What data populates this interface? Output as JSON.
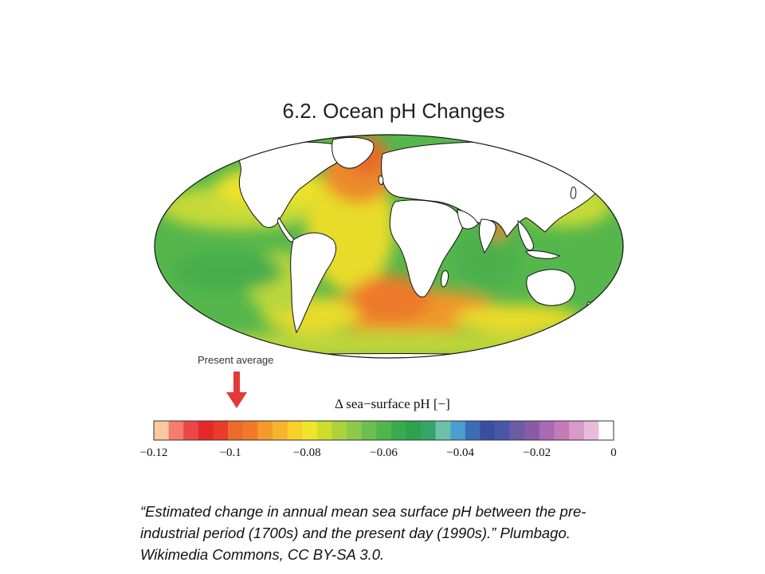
{
  "slide": {
    "title": "6.2. Ocean pH Changes",
    "present_label": "Present average",
    "colorbar_title": "Δ sea−surface pH [−]",
    "caption": "“Estimated change in annual mean sea surface pH between the pre-industrial period (1700s) and the present day (1990s).” Plumbago. Wikimedia Commons, CC BY-SA 3.0."
  },
  "colorbar": {
    "min": -0.12,
    "max": 0,
    "tick_values": [
      -0.12,
      -0.1,
      -0.08,
      -0.06,
      -0.04,
      -0.02,
      0
    ],
    "tick_labels": [
      "−0.12",
      "−0.1",
      "−0.08",
      "−0.06",
      "−0.04",
      "−0.02",
      "0"
    ],
    "present_average_value": -0.1,
    "colors": [
      "#fbc8a0",
      "#f47c6e",
      "#e9474a",
      "#e7282a",
      "#ea3a2a",
      "#ec6a2a",
      "#ef7b2a",
      "#f39a2a",
      "#f6b52a",
      "#f8cf2b",
      "#f1e52a",
      "#cfdd2c",
      "#aed23c",
      "#8ec94a",
      "#6cbf4e",
      "#50b64c",
      "#3aab4c",
      "#2aa24e",
      "#34a56a",
      "#6cc0a8",
      "#4a9fd0",
      "#3b6cb4",
      "#3a4ea0",
      "#4a56a8",
      "#6c5ca6",
      "#8a5aa6",
      "#a86ab2",
      "#c47ab8",
      "#d89ac8",
      "#e8bcd8",
      "#ffffff"
    ]
  },
  "map": {
    "colors": {
      "deep_orange": "#e8782a",
      "orange": "#f39a2a",
      "yellow": "#eee22c",
      "yellow_green": "#bdd63a",
      "green": "#55b64c",
      "teal": "#7ec7a8",
      "land": "#ffffff",
      "coast": "#111111"
    }
  }
}
